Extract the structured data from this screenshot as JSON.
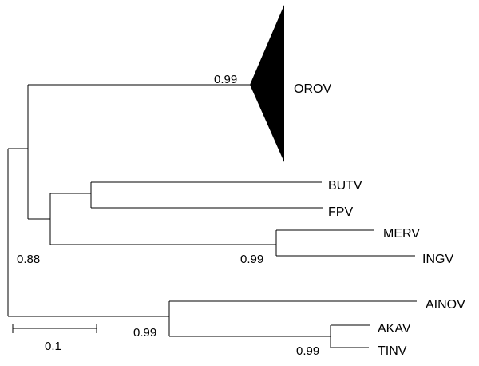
{
  "tree": {
    "collapsed_clade": {
      "label": "OROV",
      "support": "0.99"
    },
    "taxa": {
      "butv": "BUTV",
      "fpv": "FPV",
      "merv": "MERV",
      "ingv": "INGV",
      "ainov": "AINOV",
      "akav": "AKAV",
      "tinv": "TINV"
    },
    "support_values": {
      "merv_ingv": "0.99",
      "butv_fpv_merv_ingv": "0.88",
      "ainov_akav_tinv": "0.99",
      "akav_tinv": "0.99"
    },
    "scale_bar": {
      "label": "0.1",
      "value": 0.1
    }
  }
}
